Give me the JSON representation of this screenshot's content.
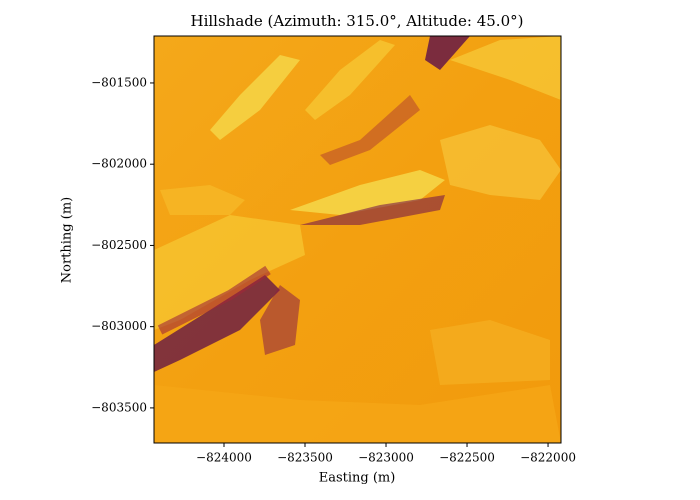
{
  "chart_data": {
    "type": "raster",
    "title": "Hillshade (Azimuth: 315.0°, Altitude: 45.0°)",
    "x_label": "Easting (m)",
    "y_label": "Northing (m)",
    "xlim": [
      -824432,
      -821920
    ],
    "ylim": [
      -803716,
      -801211
    ],
    "xticks": [
      {
        "value": -824000,
        "label": "−824000"
      },
      {
        "value": -823500,
        "label": "−823500"
      },
      {
        "value": -823000,
        "label": "−823000"
      },
      {
        "value": -822500,
        "label": "−822500"
      },
      {
        "value": -822000,
        "label": "−822000"
      }
    ],
    "yticks": [
      {
        "value": -801500,
        "label": "−801500"
      },
      {
        "value": -802000,
        "label": "−802000"
      },
      {
        "value": -802500,
        "label": "−802500"
      },
      {
        "value": -803000,
        "label": "−803000"
      },
      {
        "value": -803500,
        "label": "−803500"
      }
    ]
  }
}
